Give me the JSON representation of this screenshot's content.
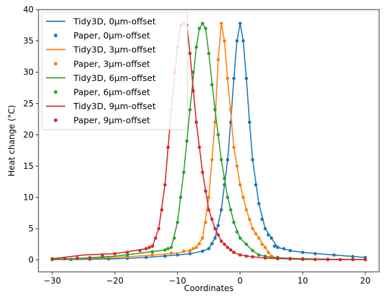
{
  "chart_data": {
    "type": "line",
    "xlabel": "Coordinates",
    "ylabel": "Heat change (°C)",
    "xlim": [
      -32.2,
      22.2
    ],
    "ylim": [
      -1.9,
      40
    ],
    "xticks": [
      -30,
      -20,
      -10,
      0,
      10,
      20
    ],
    "xtick_labels": [
      "−30",
      "−20",
      "−10",
      "0",
      "10",
      "20"
    ],
    "yticks": [
      0,
      5,
      10,
      15,
      20,
      25,
      30,
      35,
      40
    ],
    "ytick_labels": [
      "0",
      "5",
      "10",
      "15",
      "20",
      "25",
      "30",
      "35",
      "40"
    ],
    "grid": false,
    "legend_position": "top-left",
    "series": [
      {
        "name": "Tidy3D, 0μm-offset",
        "kind": "line",
        "color": "#1f77b4",
        "x": [
          -30,
          -25,
          -20,
          -15,
          -10,
          -8,
          -6,
          -5,
          -4,
          -3,
          -2,
          -1.5,
          -1,
          -0.5,
          0,
          0.5,
          1,
          1.5,
          2,
          3,
          4,
          5,
          6,
          8,
          10,
          15,
          20
        ],
        "y": [
          0.05,
          0.1,
          0.2,
          0.4,
          0.8,
          1.0,
          1.4,
          1.8,
          3.5,
          8,
          16,
          22,
          29,
          35,
          37.8,
          35,
          29,
          22,
          16,
          9,
          5,
          3.5,
          2.0,
          1.5,
          1.2,
          0.8,
          0.4
        ]
      },
      {
        "name": "Paper, 0μm-offset",
        "kind": "scatter",
        "color": "#1f77b4",
        "x": [
          -30,
          -27,
          -24,
          -21,
          -18,
          -15,
          -12,
          -10,
          -8,
          -6,
          -5,
          -4.5,
          -4,
          -3.5,
          -3,
          -2.5,
          -2,
          -1.5,
          -1,
          -0.5,
          0,
          0.5,
          1,
          1.5,
          2,
          2.5,
          3,
          3.5,
          4,
          4.5,
          5,
          5.5,
          6,
          7,
          8,
          10,
          12,
          15,
          18,
          20
        ],
        "y": [
          0.05,
          0.08,
          0.12,
          0.18,
          0.26,
          0.4,
          0.6,
          0.8,
          1.0,
          1.4,
          1.8,
          2.6,
          3.5,
          5.5,
          8,
          12,
          16,
          22,
          29,
          35,
          37.8,
          35,
          29,
          22,
          16,
          12,
          9,
          6.5,
          5,
          4,
          3.5,
          2.2,
          2.0,
          1.8,
          1.5,
          1.2,
          1.0,
          0.8,
          0.55,
          0.4
        ]
      },
      {
        "name": "Tidy3D, 3μm-offset",
        "kind": "line",
        "color": "#ff7f0e",
        "x": [
          -30,
          -25,
          -20,
          -15,
          -10,
          -8,
          -7,
          -6,
          -5,
          -4,
          -3.5,
          -3,
          -2.5,
          -2,
          -1,
          0,
          1,
          2,
          3,
          4,
          5,
          6,
          10,
          15,
          20
        ],
        "y": [
          0.1,
          0.2,
          0.4,
          0.7,
          1.1,
          1.5,
          2.0,
          3.5,
          10,
          22,
          32,
          37.8,
          35,
          29,
          18,
          12,
          8,
          5,
          3.5,
          2,
          0.6,
          0.3,
          0.2,
          0.1,
          0.05
        ]
      },
      {
        "name": "Paper, 3μm-offset",
        "kind": "scatter",
        "color": "#ff7f0e",
        "x": [
          -30,
          -26,
          -22,
          -18,
          -14,
          -11,
          -9,
          -8,
          -7.5,
          -7,
          -6.5,
          -6,
          -5.5,
          -5,
          -4.5,
          -4,
          -3.5,
          -3,
          -2.5,
          -2,
          -1.5,
          -1,
          -0.5,
          0,
          0.5,
          1,
          1.5,
          2,
          2.5,
          3,
          3.5,
          4,
          4.5,
          5,
          6,
          8,
          10,
          14,
          18,
          20
        ],
        "y": [
          0.1,
          0.18,
          0.3,
          0.5,
          0.8,
          1.1,
          1.4,
          1.5,
          1.8,
          2.0,
          2.6,
          3.5,
          6,
          10,
          16,
          22,
          32,
          37.8,
          35,
          29,
          24,
          18,
          15,
          12,
          10,
          8,
          6.5,
          5,
          4.2,
          3.5,
          2.5,
          2,
          1.2,
          0.6,
          0.3,
          0.25,
          0.2,
          0.12,
          0.07,
          0.05
        ]
      },
      {
        "name": "Tidy3D, 6μm-offset",
        "kind": "line",
        "color": "#2ca02c",
        "x": [
          -30,
          -25,
          -20,
          -15,
          -12,
          -11,
          -10,
          -9,
          -8,
          -7,
          -6.5,
          -6,
          -5.5,
          -5,
          -4,
          -3,
          -2,
          -1,
          0,
          1,
          2,
          3,
          5,
          10,
          15,
          20
        ],
        "y": [
          0.1,
          0.3,
          0.6,
          1.2,
          1.6,
          2.0,
          6,
          14,
          24,
          34,
          37,
          37.8,
          37,
          33,
          24,
          16,
          10,
          6,
          3.5,
          2.5,
          1.5,
          0.8,
          0.4,
          0.2,
          0.1,
          0.05
        ]
      },
      {
        "name": "Paper, 6μm-offset",
        "kind": "scatter",
        "color": "#2ca02c",
        "x": [
          -30,
          -26,
          -22,
          -18,
          -14,
          -12,
          -11.5,
          -11,
          -10.5,
          -10,
          -9.5,
          -9,
          -8.5,
          -8,
          -7.5,
          -7,
          -6.5,
          -6,
          -5.5,
          -5,
          -4.5,
          -4,
          -3.5,
          -3,
          -2.5,
          -2,
          -1.5,
          -1,
          -0.5,
          0,
          1,
          2,
          3,
          4,
          6,
          10,
          14,
          20
        ],
        "y": [
          0.1,
          0.25,
          0.45,
          0.8,
          1.3,
          1.6,
          1.8,
          2.0,
          3.5,
          6,
          10,
          14,
          19,
          24,
          30,
          34,
          37,
          37.8,
          37,
          33,
          28,
          24,
          20,
          16,
          13,
          10,
          8,
          6,
          4.5,
          3.5,
          2.5,
          1.5,
          0.8,
          0.6,
          0.4,
          0.2,
          0.12,
          0.05
        ]
      },
      {
        "name": "Tidy3D, 9μm-offset",
        "kind": "line",
        "color": "#d62728",
        "x": [
          -30,
          -25,
          -20,
          -15,
          -14,
          -13,
          -12,
          -11,
          -10,
          -9.5,
          -9,
          -8.5,
          -8,
          -7,
          -6,
          -5,
          -4,
          -3,
          -2,
          -1,
          0,
          2,
          4,
          10,
          15,
          20
        ],
        "y": [
          0.2,
          0.8,
          1.0,
          1.8,
          2.2,
          5,
          12,
          24,
          34,
          37.5,
          37.8,
          37.5,
          33,
          22,
          14,
          8,
          5,
          3,
          2,
          1.2,
          0.8,
          0.5,
          0.3,
          0.1,
          0.05,
          0.05
        ]
      },
      {
        "name": "Paper, 9μm-offset",
        "kind": "scatter",
        "color": "#d62728",
        "x": [
          -30,
          -28,
          -26,
          -24,
          -22,
          -20,
          -18,
          -16,
          -15,
          -14.5,
          -14,
          -13.5,
          -13,
          -12.5,
          -12,
          -11.5,
          -11,
          -10.5,
          -10,
          -9.5,
          -9,
          -8.5,
          -8,
          -7.5,
          -7,
          -6.5,
          -6,
          -5.5,
          -5,
          -4.5,
          -4,
          -3.5,
          -3,
          -2.5,
          -2,
          -1.5,
          -1,
          0,
          1,
          2,
          4,
          6,
          8,
          10,
          12,
          14,
          16,
          18,
          20
        ],
        "y": [
          0.2,
          0.25,
          0.3,
          0.35,
          0.8,
          1.0,
          1.2,
          1.5,
          1.8,
          2.0,
          2.2,
          3.5,
          5,
          8,
          12,
          18,
          24,
          30,
          34,
          37.5,
          37.8,
          37.5,
          33,
          27,
          22,
          18,
          14,
          11,
          8,
          6.5,
          5,
          4,
          3,
          2.5,
          2,
          1.6,
          1.2,
          0.8,
          0.6,
          0.5,
          0.3,
          0.2,
          0.15,
          0.1,
          0.08,
          0.06,
          0.05,
          0.05,
          0.05
        ]
      }
    ]
  }
}
